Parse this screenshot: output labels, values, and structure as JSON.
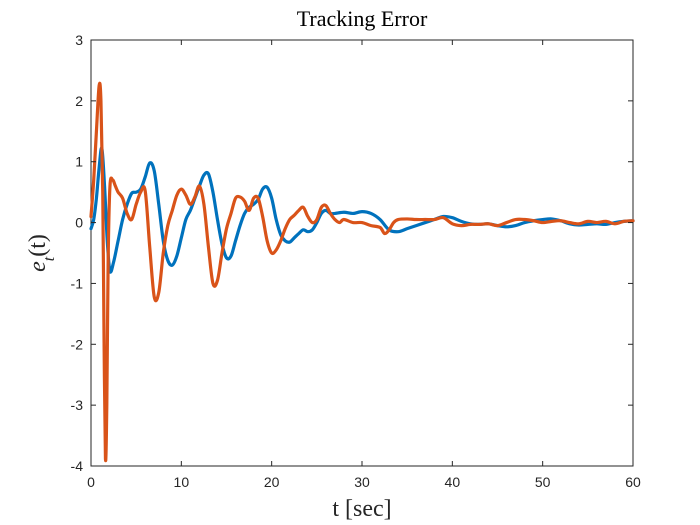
{
  "chart_data": {
    "type": "line",
    "title": "Tracking Error",
    "xlabel": "t [sec]",
    "ylabel": "e_t(t)",
    "ylabel_main": "e",
    "ylabel_sub": "t",
    "ylabel_tail": "(t)",
    "xlim": [
      0,
      60
    ],
    "ylim": [
      -4,
      3
    ],
    "xticks": [
      0,
      10,
      20,
      30,
      40,
      50,
      60
    ],
    "yticks": [
      -4,
      -3,
      -2,
      -1,
      0,
      1,
      2,
      3
    ],
    "xtick_labels": [
      "0",
      "10",
      "20",
      "30",
      "40",
      "50",
      "60"
    ],
    "ytick_labels": [
      "-4",
      "-3",
      "-2",
      "-1",
      "0",
      "1",
      "2",
      "3"
    ],
    "grid": false,
    "legend": "none",
    "series": [
      {
        "color": "#0072BD",
        "x": [
          0,
          0.3,
          0.6,
          0.9,
          1.2,
          1.5,
          1.8,
          2.1,
          2.5,
          3,
          3.5,
          4,
          4.5,
          5,
          5.5,
          6,
          6.5,
          7,
          7.5,
          8,
          8.5,
          9,
          9.5,
          10,
          10.5,
          11,
          11.5,
          12,
          12.5,
          13,
          13.5,
          14,
          14.5,
          15,
          15.5,
          16,
          16.5,
          17,
          17.5,
          18,
          18.5,
          19,
          19.5,
          20,
          20.5,
          21,
          21.5,
          22,
          22.5,
          23,
          23.5,
          24,
          24.5,
          25,
          25.5,
          26,
          26.5,
          27,
          28,
          29,
          30,
          31,
          32,
          33,
          34,
          35,
          36,
          37,
          38,
          39,
          40,
          41,
          42,
          43,
          44,
          45,
          46,
          47,
          48,
          49,
          50,
          51,
          52,
          53,
          54,
          55,
          56,
          57,
          58,
          59,
          60
        ],
        "y": [
          -0.1,
          0.05,
          0.4,
          0.9,
          1.22,
          0.6,
          -0.3,
          -0.8,
          -0.65,
          -0.3,
          0.05,
          0.3,
          0.48,
          0.5,
          0.55,
          0.75,
          0.98,
          0.85,
          0.3,
          -0.3,
          -0.62,
          -0.7,
          -0.55,
          -0.25,
          0.05,
          0.2,
          0.4,
          0.6,
          0.78,
          0.8,
          0.5,
          0.05,
          -0.35,
          -0.58,
          -0.55,
          -0.3,
          -0.05,
          0.15,
          0.25,
          0.3,
          0.38,
          0.55,
          0.58,
          0.4,
          0.05,
          -0.2,
          -0.3,
          -0.32,
          -0.25,
          -0.18,
          -0.12,
          -0.15,
          -0.12,
          0.0,
          0.15,
          0.2,
          0.15,
          0.15,
          0.17,
          0.15,
          0.18,
          0.15,
          0.05,
          -0.12,
          -0.15,
          -0.1,
          -0.05,
          0.0,
          0.05,
          0.1,
          0.08,
          0.02,
          -0.02,
          -0.03,
          -0.02,
          -0.05,
          -0.07,
          -0.05,
          0.0,
          0.03,
          0.05,
          0.06,
          0.03,
          -0.02,
          -0.04,
          -0.03,
          -0.02,
          -0.03,
          0.0,
          0.02,
          0.03
        ]
      },
      {
        "color": "#D95319",
        "x": [
          0,
          0.3,
          0.6,
          0.9,
          1.1,
          1.3,
          1.45,
          1.6,
          1.75,
          1.9,
          2.1,
          2.4,
          2.7,
          3,
          3.5,
          4,
          4.5,
          5,
          5.5,
          6,
          6.5,
          7,
          7.5,
          8,
          8.5,
          9,
          9.5,
          10,
          10.5,
          11,
          11.5,
          12,
          12.5,
          13,
          13.5,
          14,
          14.5,
          15,
          15.5,
          16,
          16.5,
          17,
          17.5,
          18,
          18.5,
          19,
          19.5,
          20,
          20.5,
          21,
          21.5,
          22,
          22.5,
          23,
          23.5,
          24,
          24.5,
          25,
          25.5,
          26,
          26.5,
          27,
          27.5,
          28,
          29,
          30,
          31,
          32,
          32.5,
          33,
          33.5,
          34,
          35,
          36,
          37,
          38,
          39,
          40,
          41,
          42,
          43,
          44,
          45,
          46,
          47,
          48,
          49,
          50,
          51,
          52,
          53,
          54,
          55,
          56,
          57,
          58,
          59,
          60
        ],
        "y": [
          0.1,
          0.7,
          1.5,
          2.25,
          2.0,
          0.5,
          -2.0,
          -3.88,
          -3.0,
          -0.6,
          0.6,
          0.7,
          0.6,
          0.5,
          0.4,
          0.15,
          0.05,
          0.3,
          0.5,
          0.52,
          -0.4,
          -1.22,
          -1.15,
          -0.5,
          -0.05,
          0.2,
          0.45,
          0.55,
          0.45,
          0.3,
          0.42,
          0.6,
          0.3,
          -0.4,
          -1.0,
          -0.95,
          -0.5,
          -0.1,
          0.15,
          0.4,
          0.42,
          0.35,
          0.2,
          0.4,
          0.4,
          0.1,
          -0.3,
          -0.5,
          -0.45,
          -0.3,
          -0.1,
          0.05,
          0.12,
          0.2,
          0.25,
          0.1,
          0.0,
          0.05,
          0.25,
          0.28,
          0.15,
          0.05,
          0.0,
          0.05,
          0.0,
          0.0,
          -0.05,
          -0.08,
          -0.18,
          -0.12,
          0.0,
          0.05,
          0.06,
          0.05,
          0.05,
          0.05,
          0.08,
          -0.02,
          -0.05,
          -0.03,
          -0.03,
          -0.02,
          -0.05,
          0.0,
          0.05,
          0.05,
          0.03,
          0.0,
          0.02,
          0.03,
          0.0,
          -0.02,
          0.02,
          0.0,
          0.02,
          -0.02,
          0.02,
          0.03
        ]
      }
    ]
  }
}
